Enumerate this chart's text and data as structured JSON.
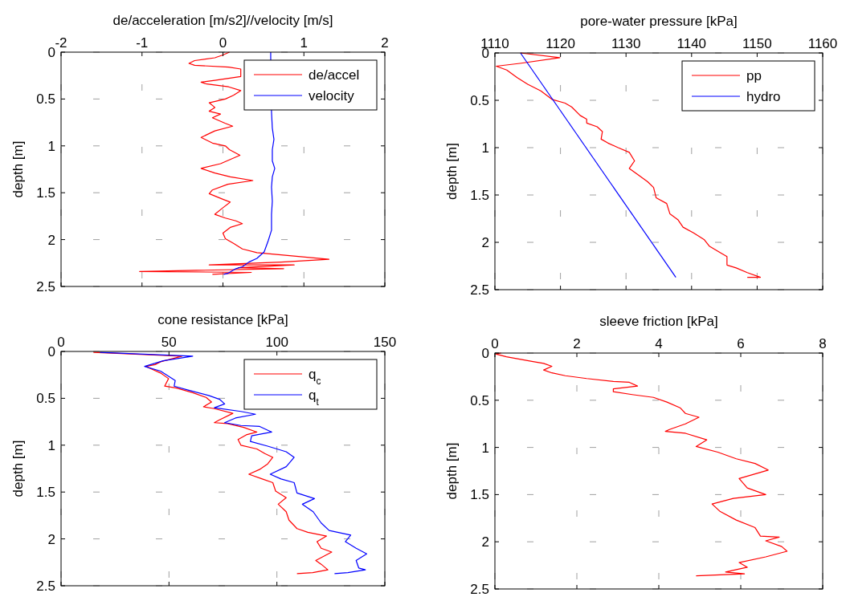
{
  "chart_data": [
    {
      "type": "line",
      "xlabel": "de/acceleration [m/s2]//velocity [m/s]",
      "ylabel": "depth [m]",
      "xlim": [
        -2,
        2
      ],
      "xticks": [
        -2,
        -1,
        0,
        1,
        2
      ],
      "ylim": [
        2.5,
        0
      ],
      "yticks": [
        0,
        0.5,
        1,
        1.5,
        2,
        2.5
      ],
      "grid": true,
      "legend": "top right",
      "series": [
        {
          "name": "de/accel",
          "color": "#ff0000",
          "x": [
            0.08,
            0,
            -0.1,
            -0.35,
            -0.42,
            -0.35,
            0.07,
            0.22,
            0.22,
            -0.1,
            -0.27,
            -0.2,
            0.07,
            0.22,
            0.13,
            0.03,
            -0.17,
            -0.1,
            -0.17,
            -0.03,
            -0.13,
            0.03,
            0.12,
            -0.1,
            -0.27,
            -0.13,
            0.03,
            0.08,
            0.21,
            -0.03,
            -0.27,
            -0.1,
            0.09,
            0.37,
            0.06,
            -0.13,
            -0.17,
            0,
            0.09,
            0,
            -0.1,
            0.03,
            0.16,
            0.24,
            0.09,
            0,
            0.03,
            0.13,
            0.24,
            0.42,
            1.31,
            0.72,
            -0.17,
            0.88,
            0.19,
            0.75,
            -1.03,
            0.35,
            -0.13
          ],
          "values": [
            0,
            0.03,
            0.06,
            0.09,
            0.12,
            0.14,
            0.16,
            0.18,
            0.26,
            0.3,
            0.32,
            0.34,
            0.37,
            0.41,
            0.46,
            0.5,
            0.54,
            0.59,
            0.63,
            0.66,
            0.7,
            0.76,
            0.79,
            0.84,
            0.91,
            0.97,
            1.0,
            1.04,
            1.1,
            1.19,
            1.24,
            1.29,
            1.33,
            1.37,
            1.41,
            1.47,
            1.51,
            1.57,
            1.6,
            1.66,
            1.73,
            1.77,
            1.8,
            1.83,
            1.87,
            1.93,
            1.99,
            2.04,
            2.1,
            2.14,
            2.21,
            2.24,
            2.27,
            2.27,
            2.3,
            2.31,
            2.34,
            2.35,
            2.37
          ]
        },
        {
          "name": "velocity",
          "color": "#0000ff",
          "x": [
            0.59,
            0.59,
            0.6,
            0.61,
            0.63,
            0.61,
            0.61,
            0.64,
            0.61,
            0.6,
            0.61,
            0.6,
            0.6,
            0.56,
            0.51,
            0.42,
            0.32,
            0.24,
            0.16,
            0.06,
            0.01
          ],
          "values": [
            0,
            0.06,
            0.64,
            0.81,
            0.93,
            1.04,
            1.16,
            1.24,
            1.33,
            1.44,
            1.59,
            1.73,
            1.9,
            2.01,
            2.13,
            2.2,
            2.24,
            2.29,
            2.31,
            2.36,
            2.37
          ]
        }
      ]
    },
    {
      "type": "line",
      "xlabel": "pore-water pressure [kPa]",
      "ylabel": "depth [m]",
      "xlim": [
        1110,
        1160
      ],
      "xticks": [
        1110,
        1120,
        1130,
        1140,
        1150,
        1160
      ],
      "ylim": [
        2.5,
        0
      ],
      "yticks": [
        0,
        0.5,
        1,
        1.5,
        2,
        2.5
      ],
      "grid": true,
      "legend": "top right",
      "series": [
        {
          "name": "pp",
          "color": "#ff0000",
          "x": [
            1113.9,
            1119.9,
            1113.8,
            1110.2,
            1111.8,
            1113.4,
            1115,
            1117,
            1118.7,
            1120.7,
            1121.7,
            1123,
            1124,
            1124,
            1125.6,
            1126.4,
            1126.2,
            1127.2,
            1128.8,
            1130.5,
            1131.3,
            1130.5,
            1131.7,
            1133.3,
            1134.2,
            1134.6,
            1136.2,
            1136.7,
            1137.9,
            1138.7,
            1140.3,
            1141.9,
            1142.7,
            1144.4,
            1145.4,
            1145.4,
            1146.8,
            1148.5,
            1150.5,
            1148.5
          ],
          "values": [
            0,
            0.05,
            0.11,
            0.14,
            0.18,
            0.26,
            0.33,
            0.4,
            0.49,
            0.53,
            0.57,
            0.66,
            0.7,
            0.74,
            0.78,
            0.83,
            0.91,
            0.95,
            1.0,
            1.05,
            1.14,
            1.22,
            1.28,
            1.36,
            1.42,
            1.53,
            1.59,
            1.7,
            1.76,
            1.84,
            1.9,
            1.97,
            2.04,
            2.11,
            2.15,
            2.24,
            2.27,
            2.32,
            2.37,
            2.37
          ]
        },
        {
          "name": "hydro",
          "color": "#0000ff",
          "x": [
            1113.9,
            1137.6
          ],
          "values": [
            0,
            2.37
          ]
        }
      ]
    },
    {
      "type": "line",
      "xlabel": "cone resistance [kPa]",
      "ylabel": "depth [m]",
      "xlim": [
        0,
        150
      ],
      "xticks": [
        0,
        50,
        100,
        150
      ],
      "ylim": [
        2.5,
        0
      ],
      "yticks": [
        0,
        0.5,
        1,
        1.5,
        2,
        2.5
      ],
      "grid": true,
      "legend": "top right",
      "series": [
        {
          "name": "q$_{c}$",
          "color": "#ff0000",
          "x": [
            15,
            56,
            46.1,
            43.6,
            39.3,
            46.1,
            49.8,
            48,
            53.5,
            61,
            67.2,
            69.7,
            66,
            71,
            79.6,
            73.4,
            71,
            77.1,
            84.6,
            90.7,
            85.8,
            82,
            83.3,
            90.7,
            94.4,
            98.1,
            95.7,
            91.9,
            87,
            93.2,
            98.1,
            99.4,
            104.3,
            100.6,
            104.3,
            105.6,
            109.3,
            114.3,
            123,
            118.6,
            120.5,
            125.4,
            118,
            120.5,
            123.6,
            116.6,
            109.3
          ],
          "values": [
            0.01,
            0.05,
            0.11,
            0.14,
            0.16,
            0.23,
            0.29,
            0.37,
            0.39,
            0.44,
            0.49,
            0.54,
            0.59,
            0.61,
            0.66,
            0.73,
            0.76,
            0.77,
            0.81,
            0.86,
            0.89,
            0.94,
            1.0,
            1.04,
            1.09,
            1.13,
            1.2,
            1.26,
            1.31,
            1.36,
            1.4,
            1.49,
            1.56,
            1.63,
            1.71,
            1.8,
            1.89,
            1.93,
            1.97,
            2.03,
            2.1,
            2.14,
            2.23,
            2.27,
            2.33,
            2.36,
            2.37
          ]
        },
        {
          "name": "q$_{t}$",
          "color": "#0000ff",
          "x": [
            18,
            61,
            47.3,
            38.7,
            46.1,
            52.9,
            52.4,
            58.5,
            68.4,
            73.4,
            75.8,
            71,
            83.3,
            90.1,
            80.8,
            75.8,
            83.3,
            92,
            97.6,
            88.3,
            87.7,
            95.7,
            104.3,
            108,
            104.3,
            96.9,
            101.9,
            108,
            109.3,
            117.4,
            111.8,
            116.8,
            120.5,
            124.2,
            134.2,
            131.7,
            136.7,
            141.6,
            136.7,
            137.9,
            141,
            132.9,
            126.7
          ],
          "values": [
            0.01,
            0.05,
            0.1,
            0.16,
            0.21,
            0.31,
            0.37,
            0.41,
            0.47,
            0.51,
            0.56,
            0.6,
            0.64,
            0.67,
            0.71,
            0.76,
            0.79,
            0.8,
            0.86,
            0.9,
            0.96,
            1.01,
            1.07,
            1.13,
            1.23,
            1.31,
            1.36,
            1.4,
            1.51,
            1.57,
            1.63,
            1.71,
            1.83,
            1.91,
            1.96,
            2.03,
            2.1,
            2.16,
            2.23,
            2.31,
            2.33,
            2.36,
            2.37
          ]
        }
      ]
    },
    {
      "type": "line",
      "xlabel": "sleeve friction [kPa]",
      "ylabel": "depth [m]",
      "xlim": [
        0,
        8
      ],
      "xticks": [
        0,
        2,
        4,
        6,
        8
      ],
      "ylim": [
        2.5,
        0
      ],
      "yticks": [
        0,
        0.5,
        1,
        1.5,
        2,
        2.5
      ],
      "grid": true,
      "series": [
        {
          "color": "#ff0000",
          "x": [
            0.15,
            0.02,
            0.28,
            0.93,
            1.19,
            1.39,
            1.19,
            1.39,
            1.72,
            2.24,
            2.89,
            3.28,
            3.48,
            2.89,
            2.89,
            3.35,
            3.87,
            4.2,
            4.52,
            4.65,
            4.98,
            4.65,
            4.26,
            4.16,
            4.65,
            5.17,
            4.91,
            5.44,
            5.89,
            6.35,
            6.67,
            5.96,
            6.16,
            6.61,
            5.82,
            5.3,
            5.5,
            5.89,
            6.35,
            6.48,
            6.94,
            6.61,
            7.0,
            7.13,
            6.61,
            5.96,
            6.16,
            5.63,
            6.09,
            4.91
          ],
          "values": [
            0,
            0.01,
            0.04,
            0.09,
            0.11,
            0.14,
            0.18,
            0.21,
            0.24,
            0.27,
            0.3,
            0.31,
            0.35,
            0.38,
            0.41,
            0.44,
            0.47,
            0.52,
            0.58,
            0.64,
            0.68,
            0.75,
            0.81,
            0.83,
            0.85,
            0.92,
            0.99,
            1.05,
            1.12,
            1.17,
            1.24,
            1.33,
            1.43,
            1.5,
            1.54,
            1.6,
            1.68,
            1.77,
            1.85,
            1.94,
            1.95,
            1.99,
            2.05,
            2.1,
            2.16,
            2.22,
            2.27,
            2.32,
            2.34,
            2.36
          ]
        }
      ]
    }
  ]
}
